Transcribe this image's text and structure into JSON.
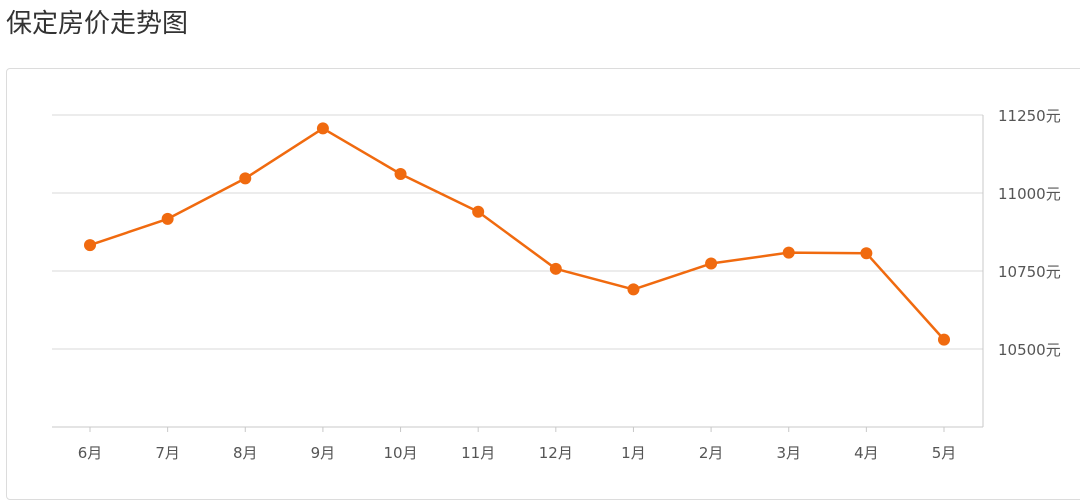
{
  "page": {
    "title": "保定房价走势图"
  },
  "chart_data": {
    "type": "line",
    "title": "",
    "xlabel": "",
    "ylabel": "",
    "categories": [
      "6月",
      "7月",
      "8月",
      "9月",
      "10月",
      "11月",
      "12月",
      "1月",
      "2月",
      "3月",
      "4月",
      "5月"
    ],
    "series": [
      {
        "values": [
          10833,
          10917,
          11047,
          11207,
          11061,
          10940,
          10757,
          10691,
          10774,
          10809,
          10807,
          10530
        ]
      }
    ],
    "y_ticks": [
      10500,
      10750,
      11000,
      11250
    ],
    "y_tick_labels": [
      "10500元",
      "10750元",
      "11000元",
      "11250元"
    ],
    "ylim": [
      10250,
      11250
    ],
    "y_axis_position": "right",
    "grid": true,
    "legend": "none",
    "colors": {
      "line": "#f06a0f",
      "grid": "#d9d9d9",
      "axis": "#c8c8c8",
      "text": "#555555"
    }
  }
}
